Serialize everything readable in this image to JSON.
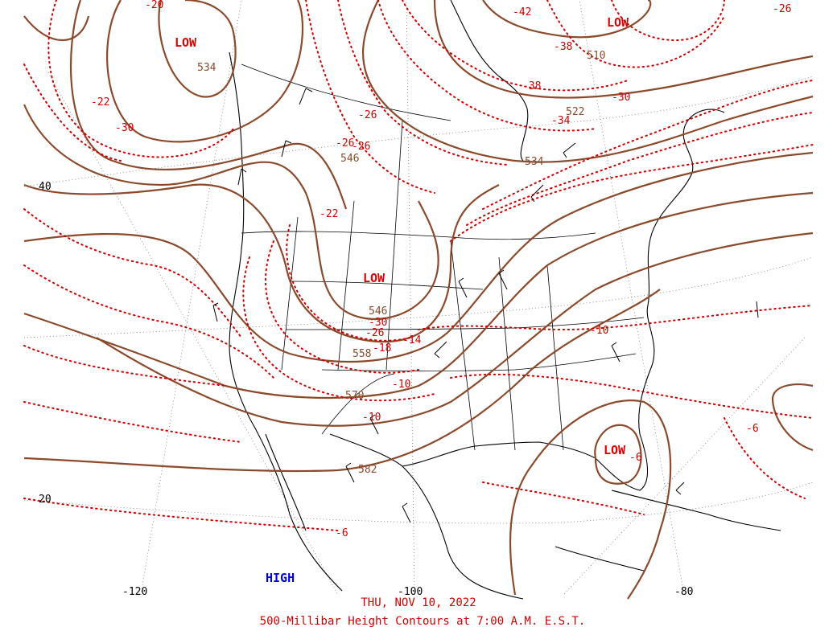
{
  "title": {
    "date": "THU, NOV 10, 2022",
    "product": "500-Millibar Height Contours at 7:00 A.M. E.S.T."
  },
  "colors": {
    "height_contour": "#8b4a2b",
    "temperature_contour": "#cc0000",
    "low_marker": "#dd0000",
    "high_marker": "#0000dd"
  },
  "axis": {
    "lat_labels": [
      "40",
      "20"
    ],
    "lon_labels": [
      "-120",
      "-100",
      "-80"
    ]
  },
  "systems": [
    {
      "type": "LOW",
      "label": "LOW"
    },
    {
      "type": "LOW",
      "label": "LOW"
    },
    {
      "type": "LOW",
      "label": "LOW"
    },
    {
      "type": "LOW",
      "label": "LOW"
    },
    {
      "type": "HIGH",
      "label": "HIGH"
    }
  ],
  "height_labels": [
    "534",
    "546",
    "510",
    "522",
    "534",
    "546",
    "558",
    "570",
    "582"
  ],
  "temperature_labels": [
    "-20",
    "-22",
    "-30",
    "-42",
    "-38",
    "-38",
    "-30",
    "-34",
    "-26",
    "-26",
    "-26",
    "-26",
    "-22",
    "-30",
    "-26",
    "-18",
    "-14",
    "-10",
    "-10",
    "-10",
    "-6",
    "-6",
    "-6"
  ]
}
